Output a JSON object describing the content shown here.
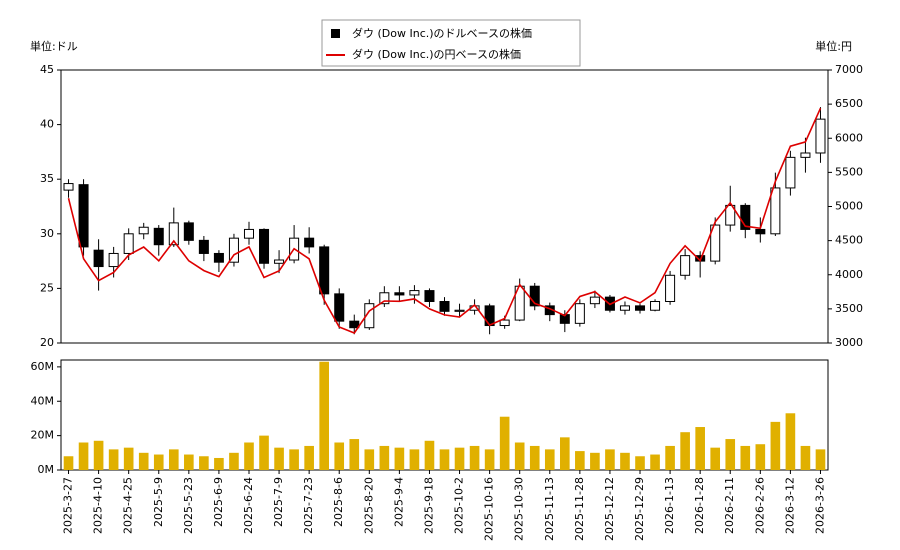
{
  "chart_data": [
    {
      "type": "candlestick",
      "ylabel": "単位:ドル",
      "y2label": "単位:円",
      "ylim": [
        20,
        45
      ],
      "yticks": [
        20,
        25,
        30,
        35,
        40,
        45
      ],
      "y2lim": [
        3000,
        7000
      ],
      "y2ticks": [
        3000,
        3500,
        4000,
        4500,
        5000,
        5500,
        6000,
        6500,
        7000
      ],
      "legend": "top",
      "x": [
        "2025-3-27",
        "2025-4-3",
        "2025-4-10",
        "2025-4-17",
        "2025-4-25",
        "2025-5-2",
        "2025-5-9",
        "2025-5-16",
        "2025-5-23",
        "2025-5-30",
        "2025-6-9",
        "2025-6-16",
        "2025-6-24",
        "2025-7-1",
        "2025-7-9",
        "2025-7-16",
        "2025-7-23",
        "2025-7-30",
        "2025-8-6",
        "2025-8-13",
        "2025-8-20",
        "2025-8-27",
        "2025-9-4",
        "2025-9-11",
        "2025-9-18",
        "2025-9-25",
        "2025-10-2",
        "2025-10-9",
        "2025-10-16",
        "2025-10-23",
        "2025-10-30",
        "2025-11-6",
        "2025-11-13",
        "2025-11-20",
        "2025-11-28",
        "2025-12-5",
        "2025-12-12",
        "2025-12-19",
        "2025-12-29",
        "2026-1-6",
        "2026-1-13",
        "2026-1-21",
        "2026-1-28",
        "2026-2-4",
        "2026-2-11",
        "2026-2-19",
        "2026-2-26",
        "2026-3-5",
        "2026-3-12",
        "2026-3-19",
        "2026-3-26"
      ],
      "series": [
        {
          "name": "ダウ (Dow Inc.)のドルベースの株価",
          "color": "#000000",
          "open": [
            34,
            34.5,
            28.5,
            27,
            28.2,
            30,
            30.5,
            29,
            31,
            29.4,
            28.2,
            27.4,
            29.6,
            30.4,
            27.3,
            27.6,
            29.6,
            28.8,
            24.5,
            22,
            21.4,
            23.6,
            24.6,
            24.4,
            24.8,
            23.8,
            22.9,
            23,
            23.4,
            21.6,
            22.1,
            25.2,
            23.4,
            22.6,
            21.8,
            23.6,
            24.2,
            23,
            23.4,
            23,
            23.8,
            26.2,
            28,
            27.5,
            30.8,
            32.6,
            30.4,
            30,
            34.2,
            37,
            37.4
          ],
          "high": [
            35,
            35,
            29.5,
            28.8,
            30.5,
            31,
            30.8,
            32.4,
            31.2,
            29.8,
            28.5,
            30,
            31.1,
            30.5,
            28.5,
            30.8,
            30.6,
            29,
            25,
            22.6,
            24,
            25.2,
            25.2,
            25.3,
            25,
            24.2,
            23.6,
            24,
            23.6,
            22.5,
            25.9,
            25.5,
            23.7,
            23,
            24,
            24.8,
            24.4,
            23.8,
            23.6,
            24,
            26.6,
            28.6,
            28.4,
            31.5,
            34.4,
            32.8,
            31.5,
            35.6,
            37.6,
            38.8,
            41.6
          ],
          "low": [
            33.3,
            28,
            24.8,
            26,
            27.6,
            29.5,
            28,
            28.8,
            29,
            27.5,
            26.5,
            27,
            29,
            26.8,
            26.4,
            27.3,
            28.2,
            23.5,
            21.3,
            20.8,
            21.2,
            23.3,
            23.8,
            23.6,
            23.3,
            22.5,
            22.4,
            22.6,
            20.8,
            21.3,
            22,
            23,
            22,
            21,
            21.5,
            23.2,
            22.8,
            22.6,
            22.7,
            22.9,
            23.5,
            25.8,
            26,
            27.2,
            30.2,
            29.6,
            29.2,
            29.8,
            33.5,
            35.6,
            36.5
          ],
          "close": [
            34.6,
            28.8,
            27,
            28.2,
            30,
            30.6,
            29,
            31,
            29.4,
            28.2,
            27.4,
            29.6,
            30.4,
            27.3,
            27.6,
            29.6,
            28.8,
            24.5,
            22,
            21.4,
            23.6,
            24.6,
            24.4,
            24.8,
            23.8,
            22.9,
            23,
            23.4,
            21.6,
            22.1,
            25.2,
            23.4,
            22.6,
            21.8,
            23.6,
            24.2,
            23,
            23.4,
            23,
            23.8,
            26.2,
            28,
            27.5,
            30.8,
            32.6,
            30.4,
            30,
            34.2,
            37,
            37.4,
            40.5
          ]
        },
        {
          "name": "ダウ (Dow Inc.)の円ベースの株価",
          "color": "#dd0000",
          "axis": "y2",
          "values": [
            5121,
            4234,
            3915,
            4033,
            4290,
            4406,
            4205,
            4495,
            4204,
            4061,
            3973,
            4292,
            4408,
            3959,
            4057,
            4381,
            4234,
            3626,
            3234,
            3146,
            3469,
            3616,
            3611,
            3646,
            3499,
            3412,
            3381,
            3557,
            3262,
            3359,
            3856,
            3580,
            3503,
            3401,
            3682,
            3751,
            3565,
            3674,
            3588,
            3737,
            4166,
            4424,
            4208,
            4774,
            5053,
            4712,
            4680,
            5369,
            5883,
            5947,
            6440
          ]
        }
      ]
    },
    {
      "type": "bar",
      "color": "#e0b000",
      "ylim": [
        0,
        64
      ],
      "yticks": [
        {
          "value": 0,
          "label": "0M"
        },
        {
          "value": 20,
          "label": "20M"
        },
        {
          "value": 40,
          "label": "40M"
        },
        {
          "value": 60,
          "label": "60M"
        }
      ],
      "x": [
        "2025-3-27",
        "2025-4-3",
        "2025-4-10",
        "2025-4-17",
        "2025-4-25",
        "2025-5-2",
        "2025-5-9",
        "2025-5-16",
        "2025-5-23",
        "2025-5-30",
        "2025-6-9",
        "2025-6-16",
        "2025-6-24",
        "2025-7-1",
        "2025-7-9",
        "2025-7-16",
        "2025-7-23",
        "2025-7-30",
        "2025-8-6",
        "2025-8-13",
        "2025-8-20",
        "2025-8-27",
        "2025-9-4",
        "2025-9-11",
        "2025-9-18",
        "2025-9-25",
        "2025-10-2",
        "2025-10-9",
        "2025-10-16",
        "2025-10-23",
        "2025-10-30",
        "2025-11-6",
        "2025-11-13",
        "2025-11-20",
        "2025-11-28",
        "2025-12-5",
        "2025-12-12",
        "2025-12-19",
        "2025-12-29",
        "2026-1-6",
        "2026-1-13",
        "2026-1-21",
        "2026-1-28",
        "2026-2-4",
        "2026-2-11",
        "2026-2-19",
        "2026-2-26",
        "2026-3-5",
        "2026-3-12",
        "2026-3-19",
        "2026-3-26"
      ],
      "xticks": [
        "2025-3-27",
        "2025-4-10",
        "2025-4-25",
        "2025-5-9",
        "2025-5-23",
        "2025-6-9",
        "2025-6-24",
        "2025-7-9",
        "2025-7-23",
        "2025-8-6",
        "2025-8-20",
        "2025-9-4",
        "2025-9-18",
        "2025-10-2",
        "2025-10-16",
        "2025-10-30",
        "2025-11-13",
        "2025-11-28",
        "2025-12-12",
        "2025-12-29",
        "2026-1-13",
        "2026-1-28",
        "2026-2-11",
        "2026-2-26",
        "2026-3-12",
        "2026-3-26"
      ],
      "values": [
        8,
        16,
        17,
        12,
        13,
        10,
        9,
        12,
        9,
        8,
        7,
        10,
        16,
        20,
        13,
        12,
        14,
        63,
        16,
        18,
        12,
        14,
        13,
        12,
        17,
        12,
        13,
        14,
        12,
        31,
        16,
        14,
        12,
        19,
        11,
        10,
        12,
        10,
        8,
        9,
        14,
        22,
        25,
        13,
        18,
        14,
        15,
        28,
        33,
        14,
        12
      ]
    }
  ]
}
